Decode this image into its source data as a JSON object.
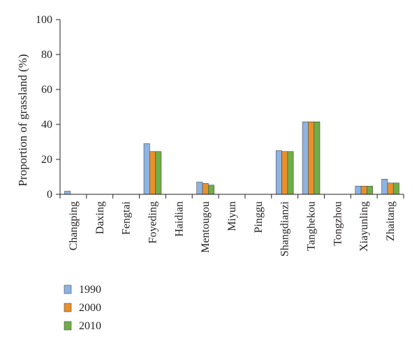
{
  "chart_data": {
    "type": "bar",
    "ylabel": "Proportion of grassland (%)",
    "ylim": [
      0,
      100
    ],
    "yticks": [
      0,
      20,
      40,
      60,
      80,
      100
    ],
    "grid": false,
    "legend_position": "bottom-left",
    "categories": [
      "Changping",
      "Daxing",
      "Fengtai",
      "Foyeding",
      "Haidian",
      "Mentougou",
      "Miyun",
      "Pinggu",
      "Shangdianzi",
      "Tanghekou",
      "Tongzhou",
      "Xiayunling",
      "Zhaitang"
    ],
    "series": [
      {
        "name": "1990",
        "color": "#8db3e2",
        "values": [
          1.8,
          0,
          0,
          29,
          0,
          7,
          0,
          0,
          25,
          41.5,
          0,
          4.7,
          8.7
        ]
      },
      {
        "name": "2000",
        "color": "#e8902c",
        "values": [
          0,
          0,
          0,
          24.5,
          0,
          6.3,
          0,
          0,
          24.5,
          41.5,
          0,
          4.7,
          6.5
        ]
      },
      {
        "name": "2010",
        "color": "#70ad47",
        "values": [
          0,
          0,
          0,
          24.5,
          0,
          5.3,
          0,
          0,
          24.5,
          41.5,
          0,
          4.7,
          6.5
        ]
      }
    ]
  }
}
